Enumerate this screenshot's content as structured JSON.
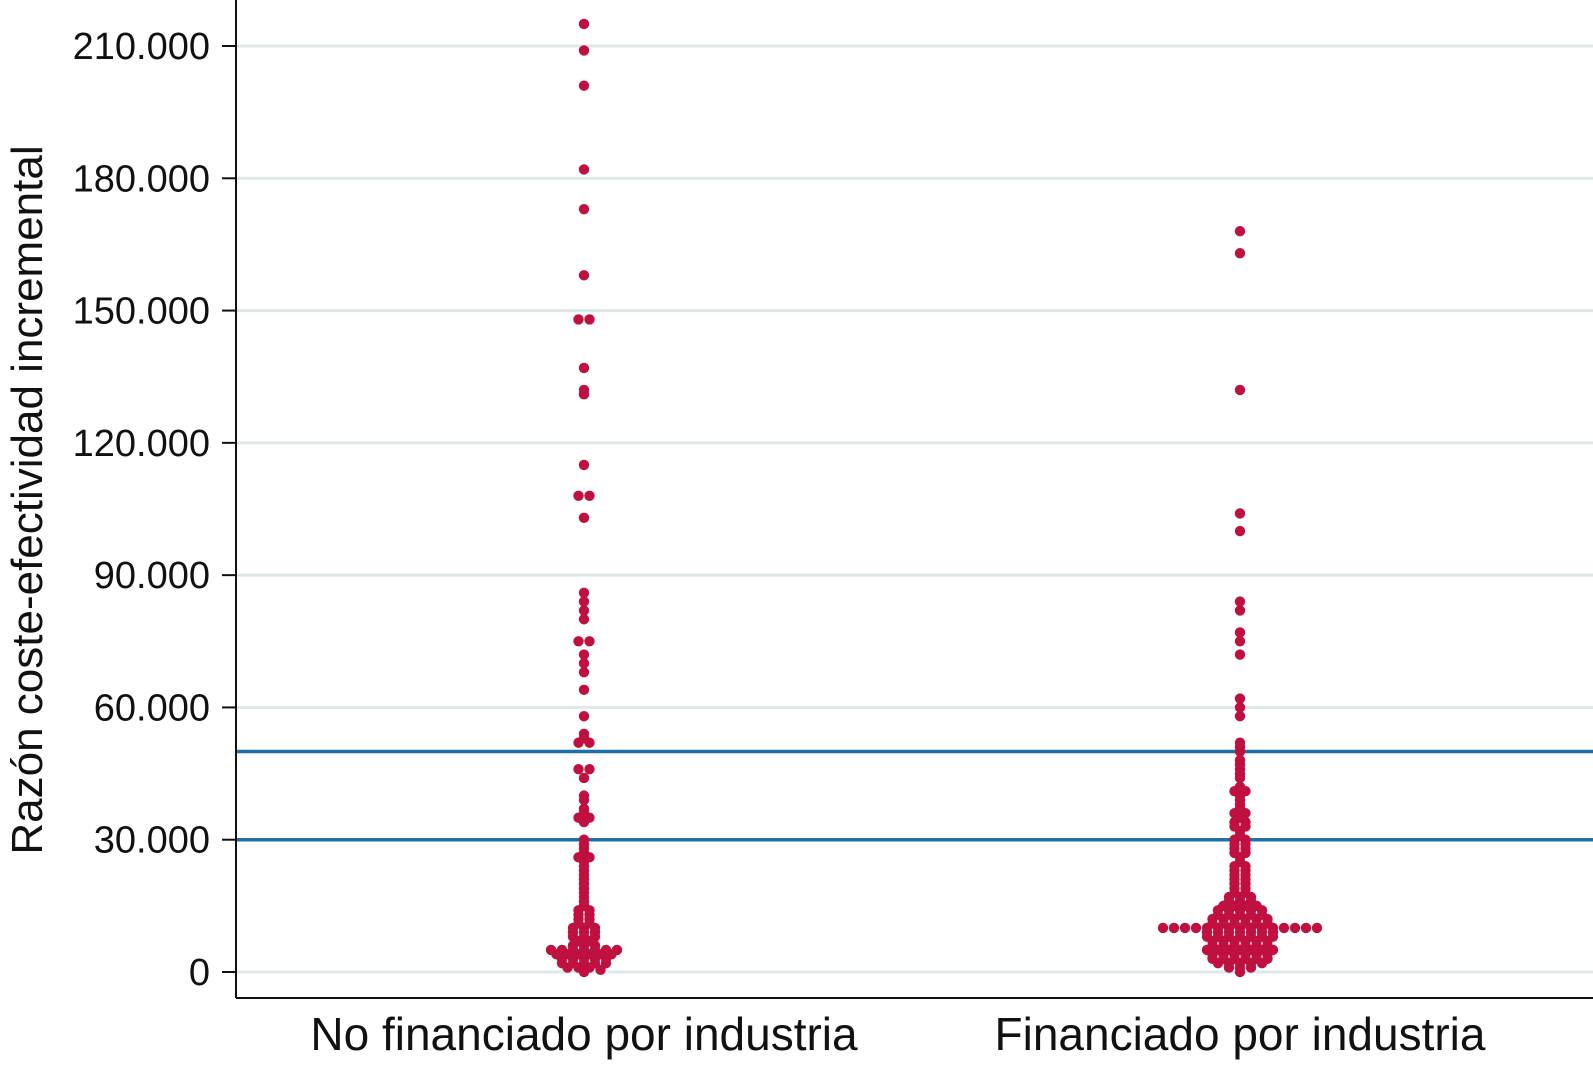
{
  "chart_data": {
    "type": "scatter",
    "subtype": "beeswarm / dot plot",
    "title": "",
    "ylabel": "Razón coste-efectividad incremental",
    "xlabel": "",
    "categories": [
      "No financiado por industria",
      "Financiado por industria"
    ],
    "ylim": [
      0,
      215000
    ],
    "yticks": [
      0,
      30000,
      60000,
      90000,
      120000,
      150000,
      180000,
      210000
    ],
    "ytick_labels": [
      "0",
      "30.000",
      "60.000",
      "90.000",
      "120.000",
      "150.000",
      "180.000",
      "210.000"
    ],
    "grid": "horizontal",
    "reference_lines": [
      {
        "y": 30000,
        "color": "#1f6fa8"
      },
      {
        "y": 50000,
        "color": "#1f6fa8"
      }
    ],
    "colors": {
      "points": "#c0103f",
      "reference_lines": "#1f6fa8",
      "grid": "#dfe7ea",
      "axis": "#111111"
    },
    "series": [
      {
        "category": "No financiado por industria",
        "values": [
          215000,
          209000,
          201000,
          182000,
          173000,
          158000,
          148000,
          148000,
          137000,
          132000,
          131000,
          115000,
          108000,
          108000,
          103000,
          86000,
          84000,
          82000,
          80000,
          75000,
          75000,
          72000,
          70000,
          68000,
          64000,
          58000,
          54000,
          53000,
          52000,
          52000,
          46000,
          46000,
          44000,
          40000,
          39000,
          37000,
          36000,
          35000,
          35000,
          34000,
          30000,
          29000,
          28000,
          27000,
          26000,
          26000,
          25000,
          24000,
          23000,
          22000,
          21000,
          20000,
          19000,
          18000,
          17000,
          16000,
          15000,
          14000,
          14000,
          13000,
          13000,
          12000,
          12000,
          11000,
          11000,
          10000,
          10000,
          10000,
          9000,
          9000,
          9000,
          8000,
          8000,
          8000,
          7000,
          7000,
          6000,
          6000,
          6000,
          5000,
          5000,
          5000,
          5000,
          5000,
          5000,
          5000,
          4000,
          4000,
          4000,
          4000,
          4000,
          4000,
          3000,
          3000,
          3000,
          3000,
          3000,
          2000,
          2000,
          2000,
          2000,
          2000,
          1000,
          1000,
          1000,
          500,
          0
        ]
      },
      {
        "category": "Financiado por industria",
        "values": [
          168000,
          163000,
          132000,
          104000,
          100000,
          84000,
          82000,
          77000,
          75000,
          72000,
          62000,
          60000,
          58000,
          52000,
          51000,
          50000,
          48000,
          47000,
          46000,
          45000,
          44000,
          42000,
          41000,
          41000,
          40000,
          39000,
          38000,
          37000,
          36000,
          36000,
          35000,
          34000,
          34000,
          33000,
          33000,
          32000,
          31000,
          30000,
          30000,
          29000,
          29000,
          28000,
          28000,
          27000,
          27000,
          26000,
          25000,
          24000,
          24000,
          23000,
          23000,
          22000,
          22000,
          21000,
          21000,
          20000,
          20000,
          19000,
          19000,
          18000,
          18000,
          17000,
          17000,
          17000,
          16000,
          16000,
          16000,
          15000,
          15000,
          15000,
          15000,
          14000,
          14000,
          14000,
          14000,
          14000,
          13000,
          13000,
          13000,
          13000,
          13000,
          12000,
          12000,
          12000,
          12000,
          12000,
          12000,
          11000,
          11000,
          11000,
          11000,
          11000,
          11000,
          10000,
          10000,
          10000,
          10000,
          10000,
          10000,
          10000,
          10000,
          10000,
          10000,
          10000,
          10000,
          10000,
          10000,
          10000,
          9000,
          9000,
          9000,
          9000,
          9000,
          9000,
          9000,
          8000,
          8000,
          8000,
          8000,
          8000,
          8000,
          8000,
          7000,
          7000,
          7000,
          7000,
          7000,
          7000,
          6000,
          6000,
          6000,
          6000,
          6000,
          6000,
          5000,
          5000,
          5000,
          5000,
          5000,
          5000,
          5000,
          4000,
          4000,
          4000,
          4000,
          4000,
          4000,
          3000,
          3000,
          3000,
          3000,
          3000,
          3000,
          2000,
          2000,
          2000,
          2000,
          2000,
          1000,
          1000,
          1000,
          0
        ]
      }
    ]
  }
}
